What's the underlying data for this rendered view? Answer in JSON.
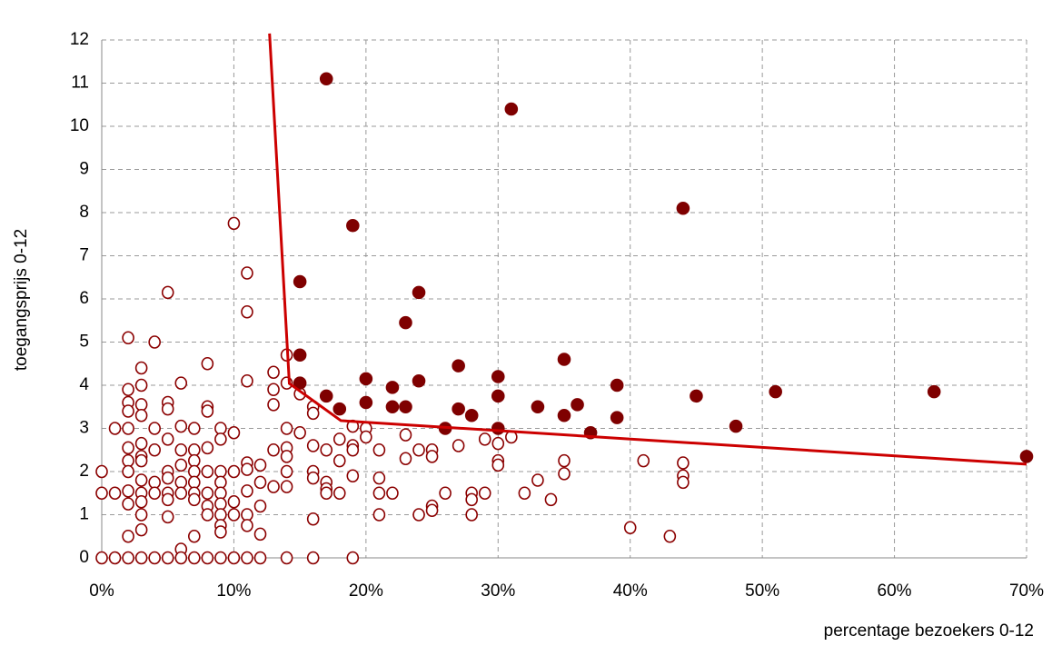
{
  "chart_data": {
    "type": "scatter",
    "x_label": "percentage bezoekers 0-12",
    "y_label": "toegangsprijs 0-12",
    "xlim": [
      0,
      70
    ],
    "xticks": [
      {
        "value": 0,
        "label": "0%"
      },
      {
        "value": 10,
        "label": "10%"
      },
      {
        "value": 20,
        "label": "20%"
      },
      {
        "value": 30,
        "label": "30%"
      },
      {
        "value": 40,
        "label": "40%"
      },
      {
        "value": 50,
        "label": "50%"
      },
      {
        "value": 60,
        "label": "60%"
      },
      {
        "value": 70,
        "label": "70%"
      }
    ],
    "ylim": [
      0,
      12
    ],
    "yticks": [
      0,
      1,
      2,
      3,
      4,
      5,
      6,
      7,
      8,
      9,
      10,
      11,
      12
    ],
    "grid": true,
    "series": [
      {
        "marker": "open",
        "color": "#8b0000",
        "x": [
          0,
          0,
          0,
          1,
          1,
          1,
          2,
          2,
          2,
          2,
          2,
          2,
          2,
          2,
          2,
          2,
          2,
          2,
          3,
          3,
          3,
          3,
          3,
          3,
          3,
          3,
          3,
          3,
          3,
          3,
          3,
          4,
          4,
          4,
          4,
          4,
          4,
          5,
          5,
          5,
          5,
          5,
          5,
          5,
          5,
          5,
          5,
          6,
          6,
          6,
          6,
          6,
          6,
          6,
          6,
          7,
          7,
          7,
          7,
          7,
          7,
          7,
          7,
          7,
          8,
          8,
          8,
          8,
          8,
          8,
          8,
          8,
          8,
          9,
          9,
          9,
          9,
          9,
          9,
          9,
          9,
          9,
          9,
          10,
          10,
          10,
          10,
          10,
          10,
          11,
          11,
          11,
          11,
          11,
          11,
          11,
          11,
          11,
          12,
          12,
          12,
          12,
          12,
          13,
          13,
          13,
          13,
          13,
          14,
          14,
          14,
          14,
          14,
          14,
          14,
          14,
          15,
          15,
          16,
          16,
          16,
          16,
          16,
          16,
          16,
          17,
          17,
          17,
          17,
          18,
          18,
          18,
          19,
          19,
          19,
          19,
          19,
          20,
          20,
          21,
          21,
          21,
          21,
          22,
          23,
          23,
          24,
          24,
          25,
          25,
          25,
          25,
          26,
          27,
          28,
          28,
          28,
          29,
          29,
          30,
          30,
          30,
          31,
          32,
          33,
          34,
          35,
          35,
          40,
          41,
          43,
          44,
          44,
          44
        ],
        "values": [
          2.0,
          1.5,
          0,
          3.0,
          1.5,
          0,
          5.1,
          3.9,
          3.6,
          3.4,
          3.0,
          2.55,
          2.25,
          2.0,
          1.55,
          1.25,
          0.5,
          0,
          4.4,
          4.0,
          3.55,
          3.3,
          2.65,
          2.35,
          2.25,
          1.8,
          1.5,
          1.3,
          1.0,
          0.65,
          0,
          5.0,
          3.0,
          2.5,
          1.75,
          1.5,
          0,
          6.15,
          3.6,
          3.45,
          2.75,
          2.0,
          1.85,
          1.5,
          1.35,
          0.95,
          0,
          4.05,
          3.05,
          2.5,
          2.15,
          1.75,
          1.5,
          0.2,
          0,
          3.0,
          2.5,
          2.25,
          2.0,
          1.75,
          1.5,
          1.35,
          0.5,
          0,
          4.5,
          3.5,
          3.4,
          2.55,
          2.0,
          1.5,
          1.2,
          1.0,
          0,
          3.0,
          2.75,
          2.0,
          1.75,
          1.5,
          1.25,
          1.0,
          0.75,
          0.6,
          0,
          7.75,
          2.9,
          2.0,
          1.3,
          1.0,
          0,
          6.6,
          5.7,
          4.1,
          2.2,
          2.05,
          1.55,
          1.0,
          0.75,
          0,
          2.15,
          1.75,
          1.2,
          0.55,
          0,
          4.3,
          3.9,
          3.55,
          2.5,
          1.65,
          4.7,
          4.05,
          3.0,
          2.55,
          2.35,
          2.0,
          1.65,
          0,
          3.8,
          2.9,
          3.5,
          3.35,
          2.6,
          2.0,
          1.85,
          0.9,
          0,
          2.5,
          1.75,
          1.6,
          1.5,
          2.75,
          2.25,
          1.5,
          3.05,
          2.6,
          2.5,
          1.9,
          0,
          3.0,
          2.8,
          2.5,
          1.85,
          1.5,
          1.0,
          1.5,
          2.85,
          2.3,
          2.5,
          1.0,
          2.5,
          2.35,
          1.2,
          1.1,
          1.5,
          2.6,
          1.5,
          1.35,
          1.0,
          2.75,
          1.5,
          2.65,
          2.25,
          2.15,
          2.8,
          1.5,
          1.8,
          1.35,
          2.25,
          1.95,
          0.7,
          2.25,
          0.5,
          2.2,
          1.9,
          1.75
        ]
      },
      {
        "marker": "filled",
        "color": "#7f0000",
        "x": [
          17,
          31,
          44,
          19,
          15,
          24,
          23,
          15,
          35,
          27,
          15,
          20,
          24,
          30,
          22,
          39,
          17,
          30,
          45,
          51,
          63,
          18,
          20,
          22,
          23,
          27,
          28,
          33,
          35,
          36,
          39,
          26,
          30,
          37,
          48,
          70
        ],
        "values": [
          11.1,
          10.4,
          8.1,
          7.7,
          6.4,
          6.15,
          5.45,
          4.7,
          4.6,
          4.45,
          4.05,
          4.15,
          4.1,
          4.2,
          3.95,
          4.0,
          3.75,
          3.75,
          3.75,
          3.85,
          3.85,
          3.45,
          3.6,
          3.5,
          3.5,
          3.45,
          3.3,
          3.5,
          3.3,
          3.55,
          3.25,
          3.0,
          3.0,
          2.9,
          3.05,
          2.35
        ]
      },
      {
        "marker": "line",
        "color": "#cc0000",
        "x": [
          12.7,
          14.2,
          18.1,
          70
        ],
        "values": [
          12.15,
          4.04,
          3.18,
          2.17
        ]
      }
    ]
  }
}
